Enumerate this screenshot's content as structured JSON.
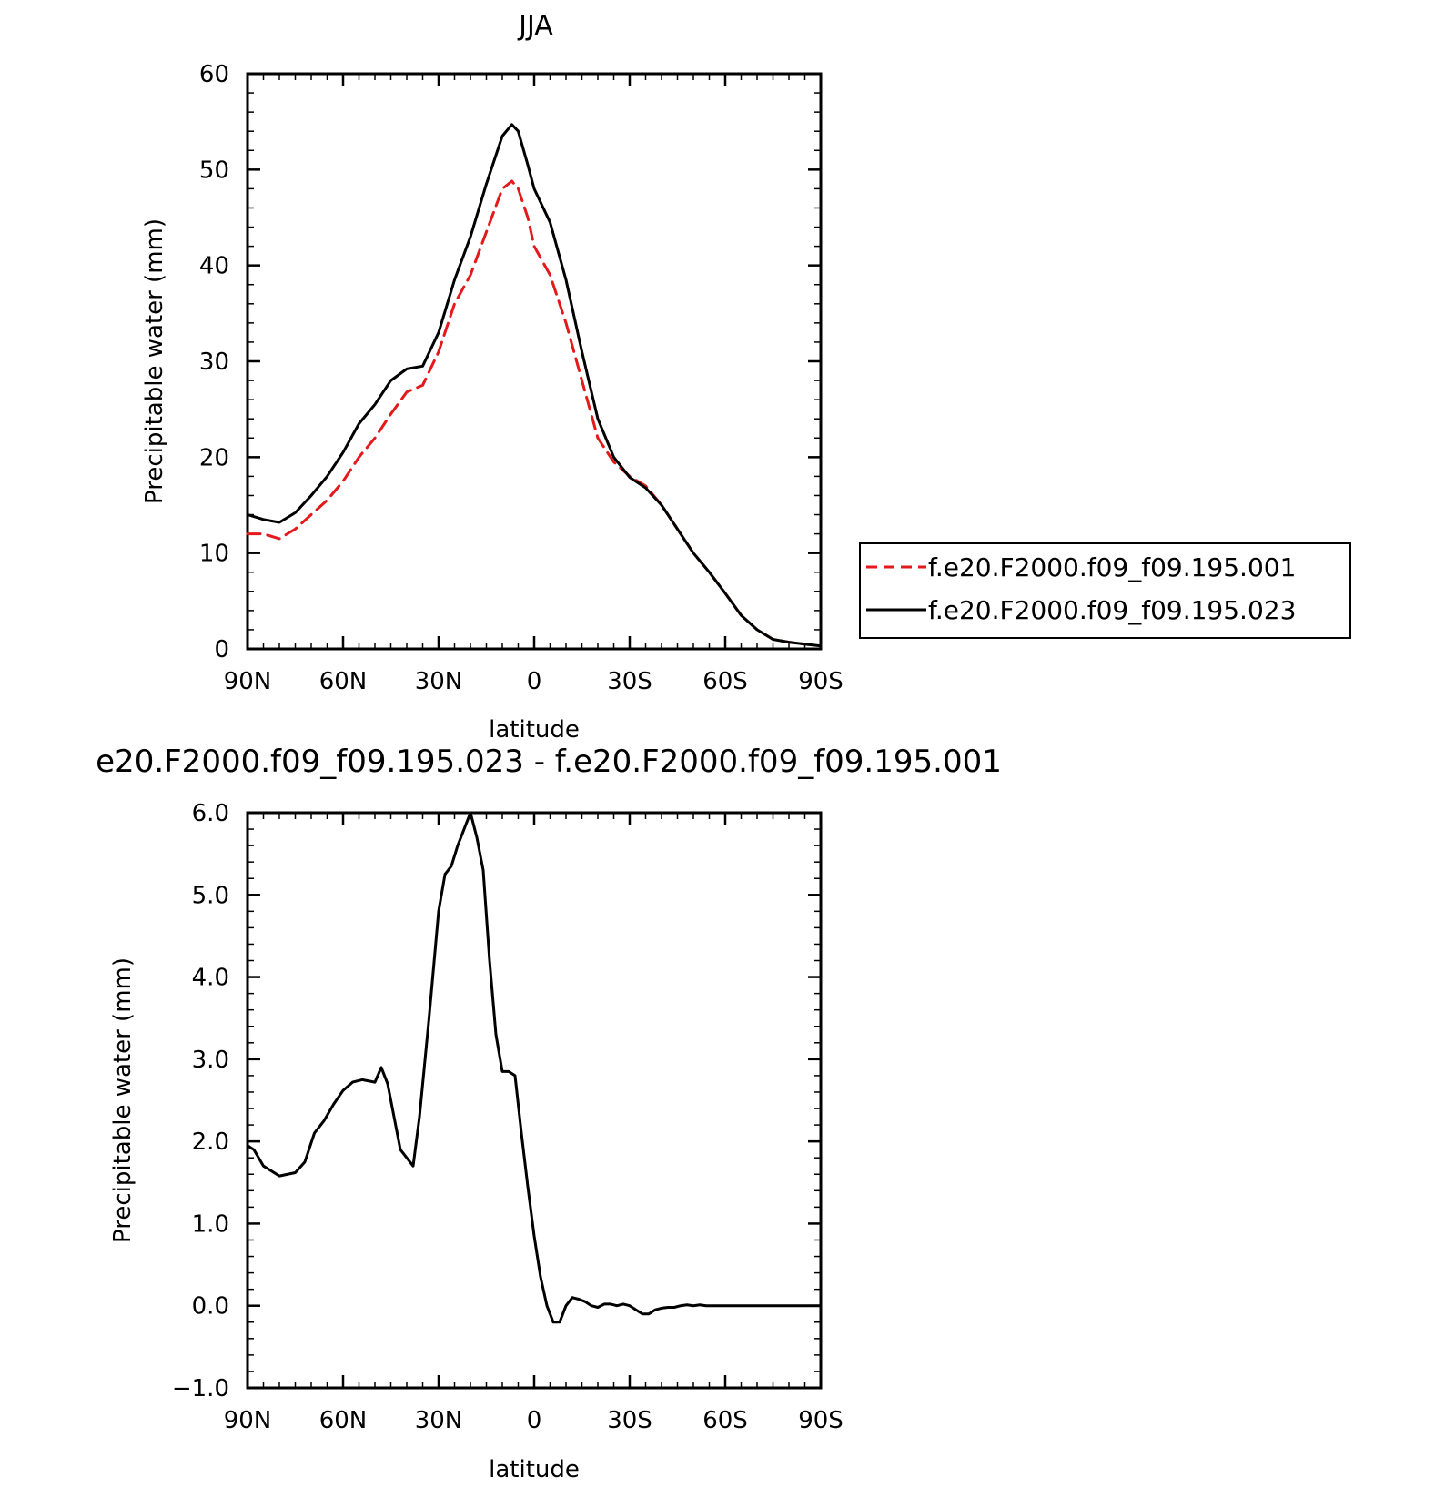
{
  "chart_data": [
    {
      "type": "line",
      "title": "JJA",
      "xlabel": "latitude",
      "ylabel": "Precipitable water (mm)",
      "xlim": [
        90,
        -90
      ],
      "ylim": [
        0,
        60
      ],
      "x_ticks": [
        90,
        60,
        30,
        0,
        -30,
        -60,
        -90
      ],
      "x_tick_labels": [
        "90N",
        "60N",
        "30N",
        "0",
        "30S",
        "60S",
        "90S"
      ],
      "y_ticks": [
        0,
        10,
        20,
        30,
        40,
        50,
        60
      ],
      "y_tick_labels": [
        "0",
        "10",
        "20",
        "30",
        "40",
        "50",
        "60"
      ],
      "legend_position": "right",
      "series": [
        {
          "name": "f.e20.F2000.f09_f09.195.001",
          "color": "#e31a1c",
          "dash": "dashed",
          "x": [
            90,
            85,
            80,
            75,
            70,
            65,
            60,
            55,
            50,
            45,
            40,
            35,
            30,
            25,
            20,
            15,
            10,
            7,
            5,
            2,
            0,
            -5,
            -10,
            -15,
            -20,
            -25,
            -30,
            -35,
            -40,
            -45,
            -50,
            -55,
            -60,
            -65,
            -70,
            -75,
            -80,
            -85,
            -90
          ],
          "y": [
            12.0,
            12.0,
            11.5,
            12.5,
            14.0,
            15.5,
            17.5,
            20.0,
            22.0,
            24.5,
            26.8,
            27.5,
            31.0,
            36.0,
            39.0,
            43.5,
            48.0,
            48.8,
            48.0,
            45.0,
            42.0,
            39.0,
            34.0,
            28.0,
            22.0,
            19.5,
            18.0,
            17.0,
            15.0,
            12.5,
            10.0,
            8.0,
            5.8,
            3.5,
            2.0,
            1.0,
            0.7,
            0.5,
            0.3
          ]
        },
        {
          "name": "f.e20.F2000.f09_f09.195.023",
          "color": "#000000",
          "dash": "solid",
          "x": [
            90,
            85,
            80,
            75,
            70,
            65,
            60,
            55,
            50,
            45,
            40,
            35,
            30,
            25,
            20,
            15,
            10,
            7,
            5,
            2,
            0,
            -5,
            -10,
            -15,
            -20,
            -25,
            -30,
            -35,
            -40,
            -45,
            -50,
            -55,
            -60,
            -65,
            -70,
            -75,
            -80,
            -85,
            -90
          ],
          "y": [
            14.0,
            13.5,
            13.2,
            14.2,
            16.0,
            18.0,
            20.5,
            23.5,
            25.5,
            28.0,
            29.2,
            29.5,
            33.0,
            38.5,
            43.0,
            48.5,
            53.5,
            54.7,
            54.0,
            50.5,
            48.0,
            44.5,
            38.5,
            31.0,
            24.0,
            20.0,
            17.9,
            16.8,
            15.0,
            12.5,
            10.0,
            8.0,
            5.8,
            3.5,
            2.0,
            1.0,
            0.7,
            0.5,
            0.3
          ]
        }
      ]
    },
    {
      "type": "line",
      "title": "e20.F2000.f09_f09.195.023 - f.e20.F2000.f09_f09.195.001",
      "xlabel": "latitude",
      "ylabel": "Precipitable water (mm)",
      "xlim": [
        90,
        -90
      ],
      "ylim": [
        -1.0,
        6.0
      ],
      "x_ticks": [
        90,
        60,
        30,
        0,
        -30,
        -60,
        -90
      ],
      "x_tick_labels": [
        "90N",
        "60N",
        "30N",
        "0",
        "30S",
        "60S",
        "90S"
      ],
      "y_ticks": [
        -1.0,
        0.0,
        1.0,
        2.0,
        3.0,
        4.0,
        5.0,
        6.0
      ],
      "y_tick_labels": [
        "−1.0",
        "0.0",
        "1.0",
        "2.0",
        "3.0",
        "4.0",
        "5.0",
        "6.0"
      ],
      "series": [
        {
          "color": "#000000",
          "dash": "solid",
          "x": [
            90,
            88,
            85,
            80,
            75,
            72,
            69,
            66,
            63,
            60,
            57,
            54,
            50,
            48,
            46,
            44,
            42,
            40,
            38,
            36,
            33,
            30,
            28,
            26,
            24,
            22,
            20,
            18,
            16,
            14,
            12,
            10,
            8,
            6,
            4,
            2,
            0,
            -2,
            -4,
            -6,
            -8,
            -10,
            -12,
            -14,
            -16,
            -18,
            -20,
            -22,
            -24,
            -26,
            -28,
            -30,
            -32,
            -34,
            -36,
            -38,
            -40,
            -42,
            -44,
            -46,
            -48,
            -50,
            -52,
            -54,
            -56,
            -58,
            -60,
            -62,
            -64,
            -66,
            -68,
            -70,
            -72,
            -74,
            -76,
            -78,
            -80,
            -82,
            -84,
            -86,
            -88,
            -90
          ],
          "y": [
            1.95,
            1.9,
            1.7,
            1.58,
            1.62,
            1.75,
            2.1,
            2.25,
            2.45,
            2.62,
            2.72,
            2.75,
            2.72,
            2.9,
            2.7,
            2.3,
            1.9,
            1.8,
            1.7,
            2.3,
            3.5,
            4.8,
            5.25,
            5.35,
            5.6,
            5.8,
            6.0,
            5.7,
            5.3,
            4.2,
            3.3,
            2.85,
            2.85,
            2.8,
            2.1,
            1.45,
            0.85,
            0.35,
            0.0,
            -0.2,
            -0.2,
            0.0,
            0.1,
            0.08,
            0.05,
            0.0,
            -0.02,
            0.02,
            0.02,
            0.0,
            0.02,
            0.0,
            -0.05,
            -0.1,
            -0.1,
            -0.05,
            -0.03,
            -0.02,
            -0.02,
            0.0,
            0.01,
            0.0,
            0.01,
            0.0,
            0.0,
            0.0,
            0.0,
            0.0,
            0.0,
            0.0,
            0.0,
            0.0,
            0.0,
            0.0,
            0.0,
            0.0,
            0.0,
            0.0,
            0.0,
            0.0,
            0.0,
            0.0
          ]
        }
      ]
    }
  ]
}
